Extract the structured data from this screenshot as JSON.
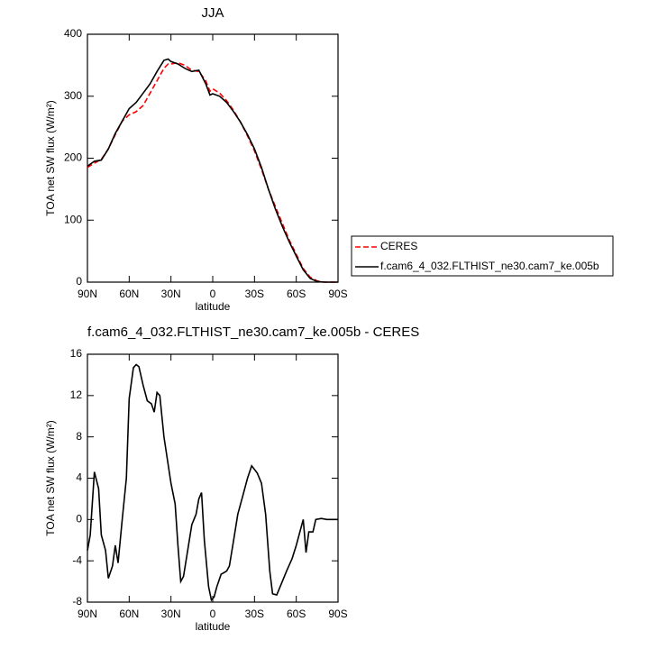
{
  "chart_data": [
    {
      "type": "line",
      "title": "JJA",
      "xlabel": "latitude",
      "ylabel": "TOA net SW flux (W/m²)",
      "x": [
        90,
        85,
        80,
        75,
        70,
        65,
        60,
        55,
        50,
        45,
        40,
        35,
        32,
        30,
        25,
        20,
        15,
        10,
        5,
        2,
        0,
        -5,
        -10,
        -15,
        -20,
        -25,
        -30,
        -35,
        -40,
        -45,
        -50,
        -55,
        -60,
        -65,
        -70,
        -75,
        -80,
        -85,
        -90
      ],
      "series": [
        {
          "name": "CERES",
          "color": "#ff0000",
          "dash": true,
          "values": [
            185,
            192,
            198,
            215,
            238,
            260,
            270,
            275,
            285,
            305,
            325,
            345,
            352,
            352,
            354,
            350,
            342,
            340,
            325,
            308,
            312,
            305,
            293,
            277,
            258,
            236,
            212,
            182,
            150,
            122,
            95,
            68,
            45,
            22,
            8,
            2,
            0,
            0,
            0
          ]
        },
        {
          "name": "f.cam6_4_032.FLTHIST_ne30.cam7_ke.005b",
          "color": "#000000",
          "dash": false,
          "values": [
            187,
            195,
            197,
            215,
            240,
            260,
            280,
            290,
            305,
            320,
            340,
            358,
            360,
            356,
            352,
            345,
            340,
            342,
            320,
            302,
            304,
            300,
            290,
            275,
            258,
            238,
            215,
            185,
            150,
            118,
            90,
            65,
            42,
            20,
            6,
            1,
            0,
            0,
            0
          ]
        }
      ],
      "xlim": [
        90,
        -90
      ],
      "xticks": [
        {
          "value": 90,
          "label": "90N"
        },
        {
          "value": 60,
          "label": "60N"
        },
        {
          "value": 30,
          "label": "30N"
        },
        0,
        {
          "value": -30,
          "label": "30S"
        },
        {
          "value": -60,
          "label": "60S"
        },
        {
          "value": -90,
          "label": "90S"
        }
      ],
      "ylim": [
        0,
        400
      ],
      "yticks": [
        0,
        100,
        200,
        300,
        400
      ]
    },
    {
      "type": "line",
      "title": "f.cam6_4_032.FLTHIST_ne30.cam7_ke.005b - CERES",
      "xlabel": "latitude",
      "ylabel": "TOA net SW flux (W/m²)",
      "x": [
        90,
        88,
        85,
        82,
        80,
        77,
        75,
        72,
        70,
        68,
        65,
        62,
        60,
        57,
        55,
        53,
        50,
        47,
        44,
        42,
        40,
        38,
        35,
        30,
        27,
        25,
        23,
        21,
        18,
        15,
        12,
        10,
        8,
        6,
        3,
        1,
        -1,
        -3,
        -6,
        -10,
        -12,
        -15,
        -18,
        -22,
        -25,
        -28,
        -32,
        -35,
        -38,
        -41,
        -43,
        -46,
        -50,
        -53,
        -57,
        -60,
        -63,
        -65,
        -67,
        -69,
        -72,
        -74,
        -78,
        -82,
        -90
      ],
      "series": [
        {
          "color": "#000000",
          "dash": false,
          "values": [
            -3,
            -1.5,
            4.6,
            3,
            -1.5,
            -3,
            -5.7,
            -4.5,
            -2.5,
            -4.2,
            0,
            4,
            11.7,
            14.7,
            15,
            14.8,
            13,
            11.5,
            11.2,
            10.4,
            12.3,
            12,
            8,
            3.5,
            1.5,
            -2.5,
            -6,
            -5.5,
            -3,
            -0.5,
            0.5,
            2,
            2.6,
            -2,
            -6.5,
            -7.8,
            -7.5,
            -6.5,
            -5.3,
            -5,
            -4.5,
            -2,
            0.5,
            2.5,
            4,
            5.2,
            4.5,
            3.5,
            0.5,
            -5,
            -7.2,
            -7.3,
            -6,
            -5,
            -3.8,
            -2.5,
            -1,
            0,
            -3.2,
            -1.2,
            -1.2,
            0,
            0.1,
            0,
            0
          ]
        }
      ],
      "xlim": [
        90,
        -90
      ],
      "xticks": [
        {
          "value": 90,
          "label": "90N"
        },
        {
          "value": 60,
          "label": "60N"
        },
        {
          "value": 30,
          "label": "30N"
        },
        0,
        {
          "value": -30,
          "label": "30S"
        },
        {
          "value": -60,
          "label": "60S"
        },
        {
          "value": -90,
          "label": "90S"
        }
      ],
      "ylim": [
        -8,
        16
      ],
      "yticks": [
        -8,
        -4,
        0,
        4,
        8,
        12,
        16
      ]
    }
  ]
}
